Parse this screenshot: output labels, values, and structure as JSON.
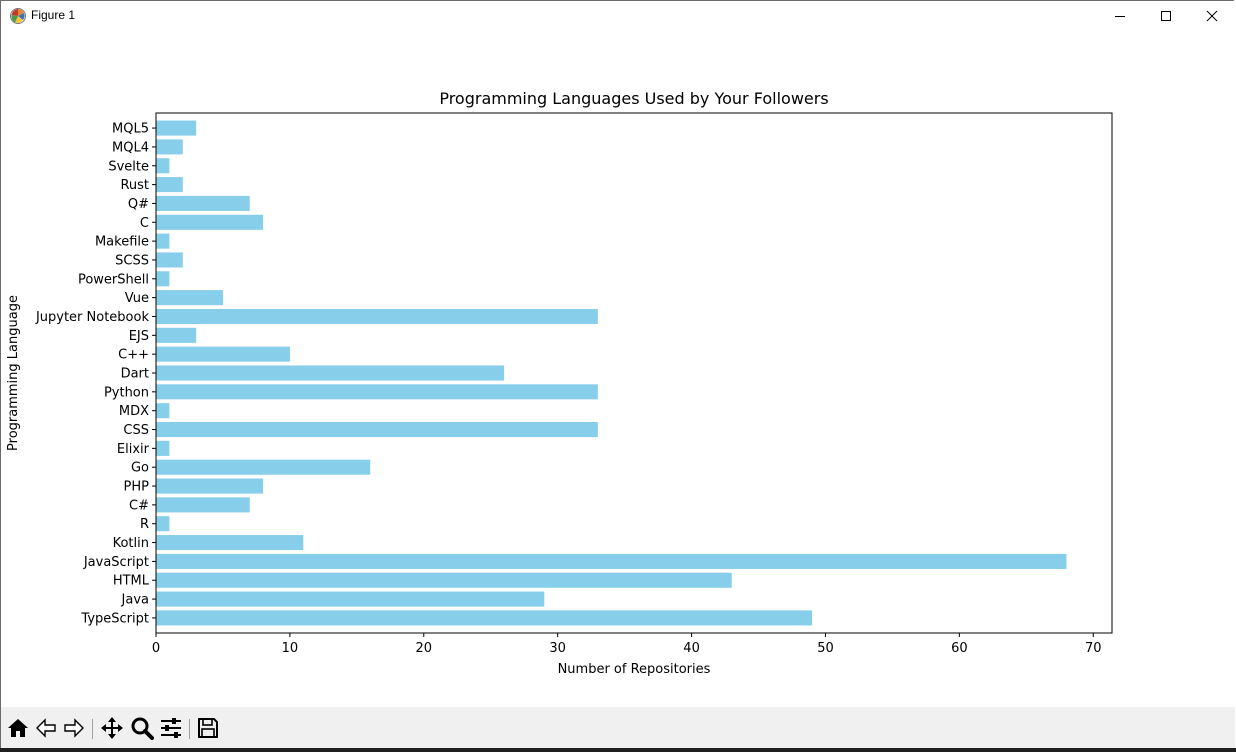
{
  "window": {
    "title": "Figure 1"
  },
  "toolbar": {
    "buttons": [
      {
        "name": "home-icon"
      },
      {
        "name": "back-arrow-icon"
      },
      {
        "name": "forward-arrow-icon"
      },
      {
        "name": "pan-move-icon"
      },
      {
        "name": "zoom-magnifier-icon"
      },
      {
        "name": "configure-subplots-icon"
      },
      {
        "name": "save-figure-icon"
      }
    ]
  },
  "chart_data": {
    "type": "bar",
    "orientation": "horizontal",
    "title": "Programming Languages Used by Your Followers",
    "xlabel": "Number of Repositories",
    "ylabel": "Programming Language",
    "bar_color": "#87ceeb",
    "xlim": [
      0,
      71.4
    ],
    "xticks": [
      0,
      10,
      20,
      30,
      40,
      50,
      60,
      70
    ],
    "grid": false,
    "categories": [
      "TypeScript",
      "Java",
      "HTML",
      "JavaScript",
      "Kotlin",
      "R",
      "C#",
      "PHP",
      "Go",
      "Elixir",
      "CSS",
      "MDX",
      "Python",
      "Dart",
      "C++",
      "EJS",
      "Jupyter Notebook",
      "Vue",
      "PowerShell",
      "SCSS",
      "Makefile",
      "C",
      "Q#",
      "Rust",
      "Svelte",
      "MQL4",
      "MQL5"
    ],
    "values": [
      49,
      29,
      43,
      68,
      11,
      1,
      7,
      8,
      16,
      1,
      33,
      1,
      33,
      26,
      10,
      3,
      33,
      5,
      1,
      2,
      1,
      8,
      7,
      2,
      1,
      2,
      3
    ]
  }
}
